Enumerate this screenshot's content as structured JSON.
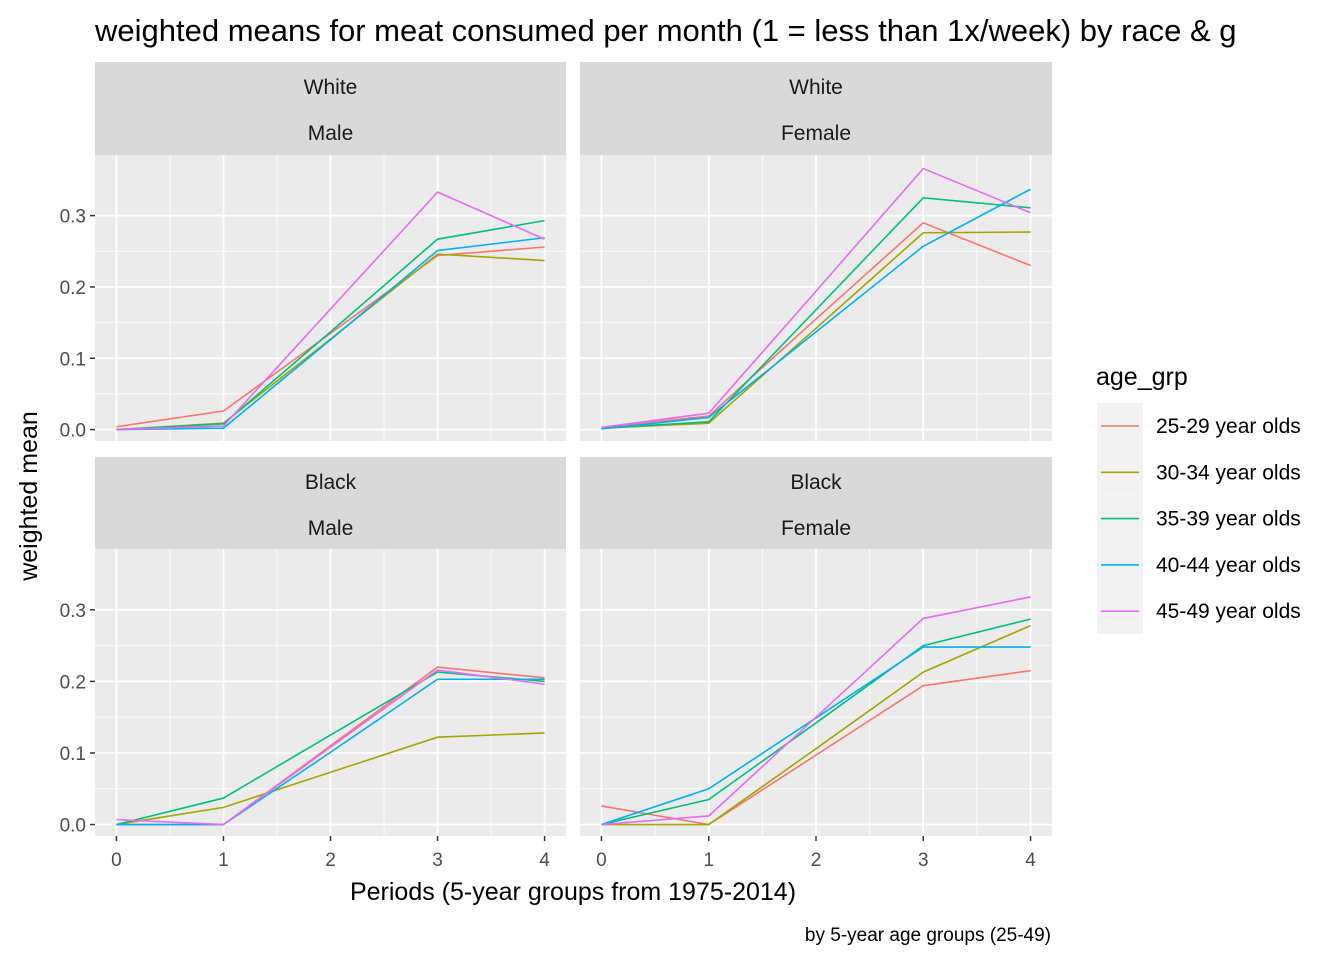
{
  "chart_data": {
    "type": "line",
    "title": "weighted means for meat consumed per month (1 = less than 1x/week) by race & g",
    "xlabel": "Periods (5-year groups from 1975-2014)",
    "ylabel": "weighted mean",
    "caption": "by 5-year age groups (25-49)",
    "x": [
      0,
      1,
      2,
      3,
      4
    ],
    "x_ticks": [
      "0",
      "1",
      "2",
      "3",
      "4"
    ],
    "xlim": [
      -0.2,
      4.2
    ],
    "y_ticks": [
      "0.0",
      "0.1",
      "0.2",
      "0.3"
    ],
    "y_tick_values": [
      0,
      0.1,
      0.2,
      0.3
    ],
    "ylim": [
      -0.016,
      0.385
    ],
    "grid": true,
    "legend": {
      "title": "age_grp",
      "placement": "right",
      "entries": [
        {
          "name": "25-29 year olds",
          "color": "#F8766D"
        },
        {
          "name": "30-34 year olds",
          "color": "#A3A500"
        },
        {
          "name": "35-39 year olds",
          "color": "#00BF7D"
        },
        {
          "name": "40-44 year olds",
          "color": "#00B0F6"
        },
        {
          "name": "45-49 year olds",
          "color": "#E76BF3"
        }
      ]
    },
    "facets": [
      {
        "race": "White",
        "sex": "Male",
        "series": [
          {
            "name": "25-29 year olds",
            "values": [
              0.004,
              0.026,
              0.135,
              0.244,
              0.256
            ]
          },
          {
            "name": "30-34 year olds",
            "values": [
              0.0,
              0.009,
              0.127,
              0.246,
              0.237
            ]
          },
          {
            "name": "35-39 year olds",
            "values": [
              0.0,
              0.008,
              0.137,
              0.267,
              0.293
            ]
          },
          {
            "name": "40-44 year olds",
            "values": [
              0.0,
              0.002,
              0.126,
              0.251,
              0.269
            ]
          },
          {
            "name": "45-49 year olds",
            "values": [
              0.0,
              0.005,
              0.169,
              0.333,
              0.267
            ]
          }
        ]
      },
      {
        "race": "White",
        "sex": "Female",
        "series": [
          {
            "name": "25-29 year olds",
            "values": [
              0.003,
              0.019,
              0.155,
              0.29,
              0.23
            ]
          },
          {
            "name": "30-34 year olds",
            "values": [
              0.002,
              0.009,
              0.142,
              0.276,
              0.277
            ]
          },
          {
            "name": "35-39 year olds",
            "values": [
              0.002,
              0.011,
              0.168,
              0.325,
              0.311
            ]
          },
          {
            "name": "40-44 year olds",
            "values": [
              0.001,
              0.017,
              0.137,
              0.257,
              0.337
            ]
          },
          {
            "name": "45-49 year olds",
            "values": [
              0.003,
              0.023,
              0.194,
              0.366,
              0.304
            ]
          }
        ]
      },
      {
        "race": "Black",
        "sex": "Male",
        "series": [
          {
            "name": "25-29 year olds",
            "values": [
              0.0,
              0.0,
              0.11,
              0.22,
              0.205
            ]
          },
          {
            "name": "30-34 year olds",
            "values": [
              0.0,
              0.024,
              0.073,
              0.122,
              0.128
            ]
          },
          {
            "name": "35-39 year olds",
            "values": [
              0.0,
              0.037,
              0.125,
              0.213,
              0.2
            ]
          },
          {
            "name": "40-44 year olds",
            "values": [
              0.0,
              0.0,
              0.101,
              0.203,
              0.203
            ]
          },
          {
            "name": "45-49 year olds",
            "values": [
              0.007,
              0.0,
              0.108,
              0.216,
              0.196
            ]
          }
        ]
      },
      {
        "race": "Black",
        "sex": "Female",
        "series": [
          {
            "name": "25-29 year olds",
            "values": [
              0.026,
              0.0,
              0.097,
              0.194,
              0.215
            ]
          },
          {
            "name": "30-34 year olds",
            "values": [
              0.0,
              0.0,
              0.106,
              0.213,
              0.278
            ]
          },
          {
            "name": "35-39 year olds",
            "values": [
              0.0,
              0.035,
              0.142,
              0.25,
              0.287
            ]
          },
          {
            "name": "40-44 year olds",
            "values": [
              0.0,
              0.05,
              0.149,
              0.248,
              0.248
            ]
          },
          {
            "name": "45-49 year olds",
            "values": [
              0.0,
              0.012,
              0.15,
              0.288,
              0.318
            ]
          }
        ]
      }
    ]
  }
}
